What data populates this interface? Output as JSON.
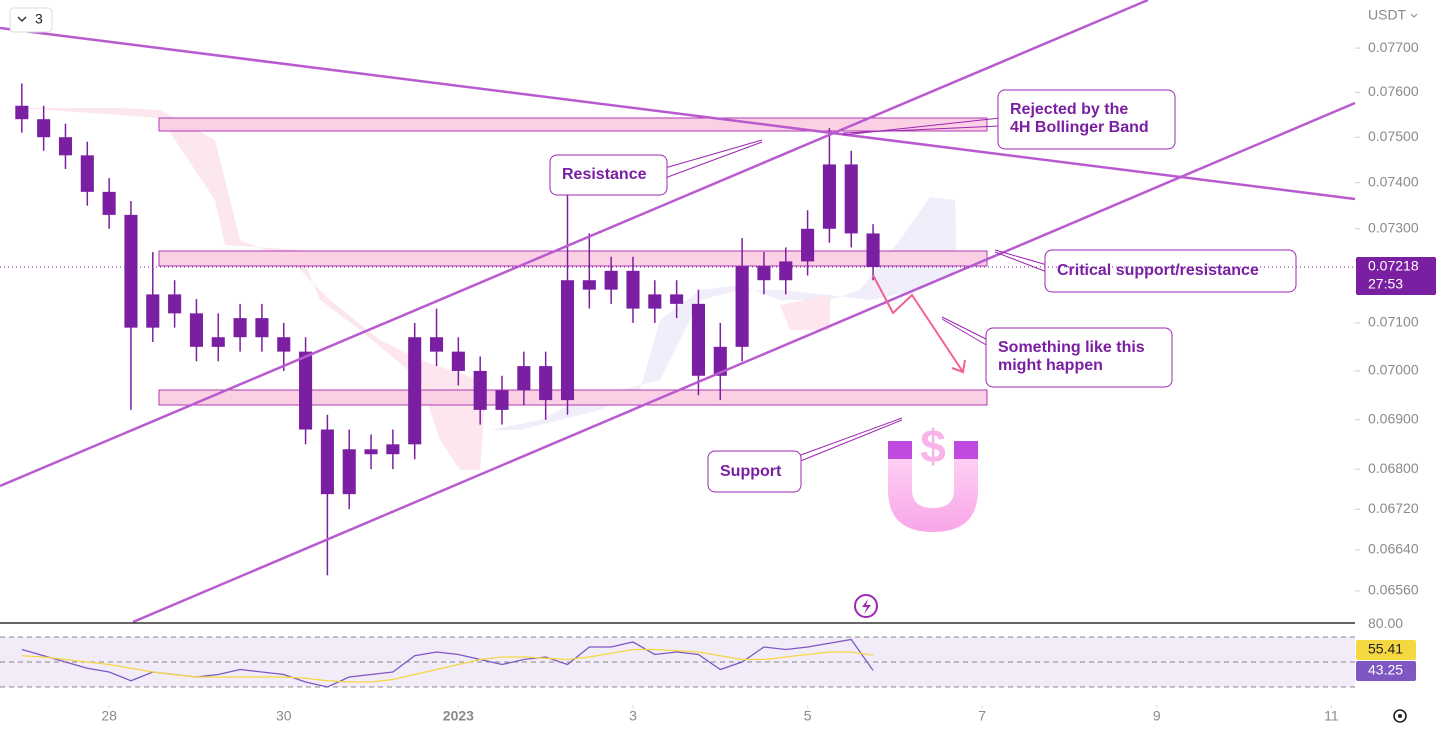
{
  "chart_data": [
    {
      "type": "candlestick",
      "currency": "USDT",
      "indicator_count": 3,
      "countdown": "27:53",
      "log": true,
      "color": "#7b1fa2",
      "x": [
        -1,
        -0.75,
        -0.5,
        -0.25,
        0,
        0.25,
        0.5,
        0.75,
        1,
        1.25,
        1.5,
        1.75,
        2,
        2.25,
        2.5,
        2.75,
        3,
        3.25,
        3.5,
        3.75,
        4,
        4.25,
        4.5,
        4.75,
        5,
        5.25,
        5.5,
        5.75,
        6,
        6.25,
        6.5,
        6.75,
        7,
        7.25,
        7.5,
        7.75,
        8,
        8.25,
        8.5,
        8.75
      ],
      "open": [
        0.0757,
        0.0754,
        0.075,
        0.0746,
        0.0738,
        0.0733,
        0.0709,
        0.0716,
        0.0712,
        0.0705,
        0.0707,
        0.0711,
        0.0707,
        0.0704,
        0.0688,
        0.0675,
        0.0684,
        0.0683,
        0.0685,
        0.0707,
        0.0704,
        0.07,
        0.0692,
        0.0696,
        0.0701,
        0.0694,
        0.0719,
        0.0717,
        0.0721,
        0.0713,
        0.0716,
        0.0714,
        0.0699,
        0.0705,
        0.0722,
        0.0719,
        0.0723,
        0.073,
        0.0744,
        0.0729
      ],
      "high": [
        0.0762,
        0.0757,
        0.0753,
        0.0749,
        0.0741,
        0.0736,
        0.0725,
        0.0719,
        0.0715,
        0.0712,
        0.0714,
        0.0714,
        0.071,
        0.0707,
        0.0691,
        0.0688,
        0.0687,
        0.0688,
        0.071,
        0.0713,
        0.0707,
        0.0703,
        0.0699,
        0.0704,
        0.0704,
        0.0738,
        0.0729,
        0.0724,
        0.0724,
        0.0719,
        0.0719,
        0.0717,
        0.071,
        0.0728,
        0.0725,
        0.0726,
        0.0734,
        0.0752,
        0.0747,
        0.0731
      ],
      "low": [
        0.0751,
        0.0747,
        0.0743,
        0.0735,
        0.073,
        0.0692,
        0.0706,
        0.0709,
        0.0702,
        0.0702,
        0.0704,
        0.0704,
        0.07,
        0.0685,
        0.0659,
        0.0672,
        0.068,
        0.068,
        0.0682,
        0.0701,
        0.0697,
        0.0689,
        0.0689,
        0.0693,
        0.069,
        0.0691,
        0.0713,
        0.0714,
        0.071,
        0.071,
        0.0711,
        0.0695,
        0.0694,
        0.0702,
        0.0716,
        0.0716,
        0.072,
        0.0727,
        0.0726,
        0.0719
      ],
      "close": [
        0.0754,
        0.075,
        0.0746,
        0.0738,
        0.0733,
        0.0709,
        0.0716,
        0.0712,
        0.0705,
        0.0707,
        0.0711,
        0.0707,
        0.0704,
        0.0688,
        0.0675,
        0.0684,
        0.0683,
        0.0685,
        0.0707,
        0.0704,
        0.07,
        0.0692,
        0.0696,
        0.0701,
        0.0694,
        0.0719,
        0.0717,
        0.0721,
        0.0713,
        0.0716,
        0.0714,
        0.0699,
        0.0705,
        0.0722,
        0.0719,
        0.0723,
        0.073,
        0.0744,
        0.0729,
        0.07218
      ],
      "xlim": [
        -1.25,
        14.27
      ],
      "xticks": [
        {
          "value": 0,
          "label": "28"
        },
        {
          "value": 2,
          "label": "30"
        },
        {
          "value": 4,
          "label": "2023"
        },
        {
          "value": 6,
          "label": "3"
        },
        {
          "value": 8,
          "label": "5"
        },
        {
          "value": 10,
          "label": "7"
        },
        {
          "value": 12,
          "label": "9"
        },
        {
          "value": 14,
          "label": "11"
        }
      ],
      "ylim": [
        0.065,
        0.0781
      ],
      "yticks": [
        {
          "value": 0.077,
          "label": "0.07700"
        },
        {
          "value": 0.076,
          "label": "0.07600"
        },
        {
          "value": 0.075,
          "label": "0.07500"
        },
        {
          "value": 0.074,
          "label": "0.07400"
        },
        {
          "value": 0.073,
          "label": "0.07300"
        },
        {
          "value": 0.071,
          "label": "0.07100"
        },
        {
          "value": 0.07,
          "label": "0.07000"
        },
        {
          "value": 0.069,
          "label": "0.06900"
        },
        {
          "value": 0.068,
          "label": "0.06800"
        },
        {
          "value": 0.0672,
          "label": "0.06720"
        },
        {
          "value": 0.0664,
          "label": "0.06640"
        },
        {
          "value": 0.0656,
          "label": "0.06560"
        }
      ],
      "annotations": [
        [
          "Rejected by the",
          "4H Bollinger Band"
        ],
        [
          "Resistance"
        ],
        [
          "Critical support/resistance"
        ],
        [
          "Something like this",
          "might happen"
        ],
        [
          "Support"
        ]
      ]
    },
    {
      "type": "line",
      "series": [
        {
          "color": "#7e57c2",
          "values": [
            60,
            55,
            50,
            45,
            42,
            35,
            42,
            40,
            38,
            40,
            44,
            42,
            40,
            34,
            30,
            38,
            40,
            42,
            55,
            58,
            56,
            52,
            48,
            52,
            54,
            48,
            62,
            62,
            66,
            56,
            58,
            56,
            44,
            50,
            62,
            60,
            62,
            65,
            68,
            43.25
          ]
        },
        {
          "color": "#f5d742",
          "values": [
            55,
            54,
            52,
            50,
            48,
            45,
            42,
            40,
            38,
            38,
            38,
            38,
            38,
            37,
            35,
            34,
            34,
            36,
            40,
            44,
            48,
            52,
            54,
            54,
            53,
            52,
            54,
            57,
            60,
            60,
            59,
            58,
            55,
            52,
            52,
            54,
            56,
            58,
            58,
            55.41
          ]
        }
      ],
      "ylim": [
        15.6,
        82
      ],
      "yticks": [
        {
          "value": 80,
          "label": "80.00"
        }
      ],
      "bands": [
        70,
        50,
        30
      ]
    }
  ]
}
